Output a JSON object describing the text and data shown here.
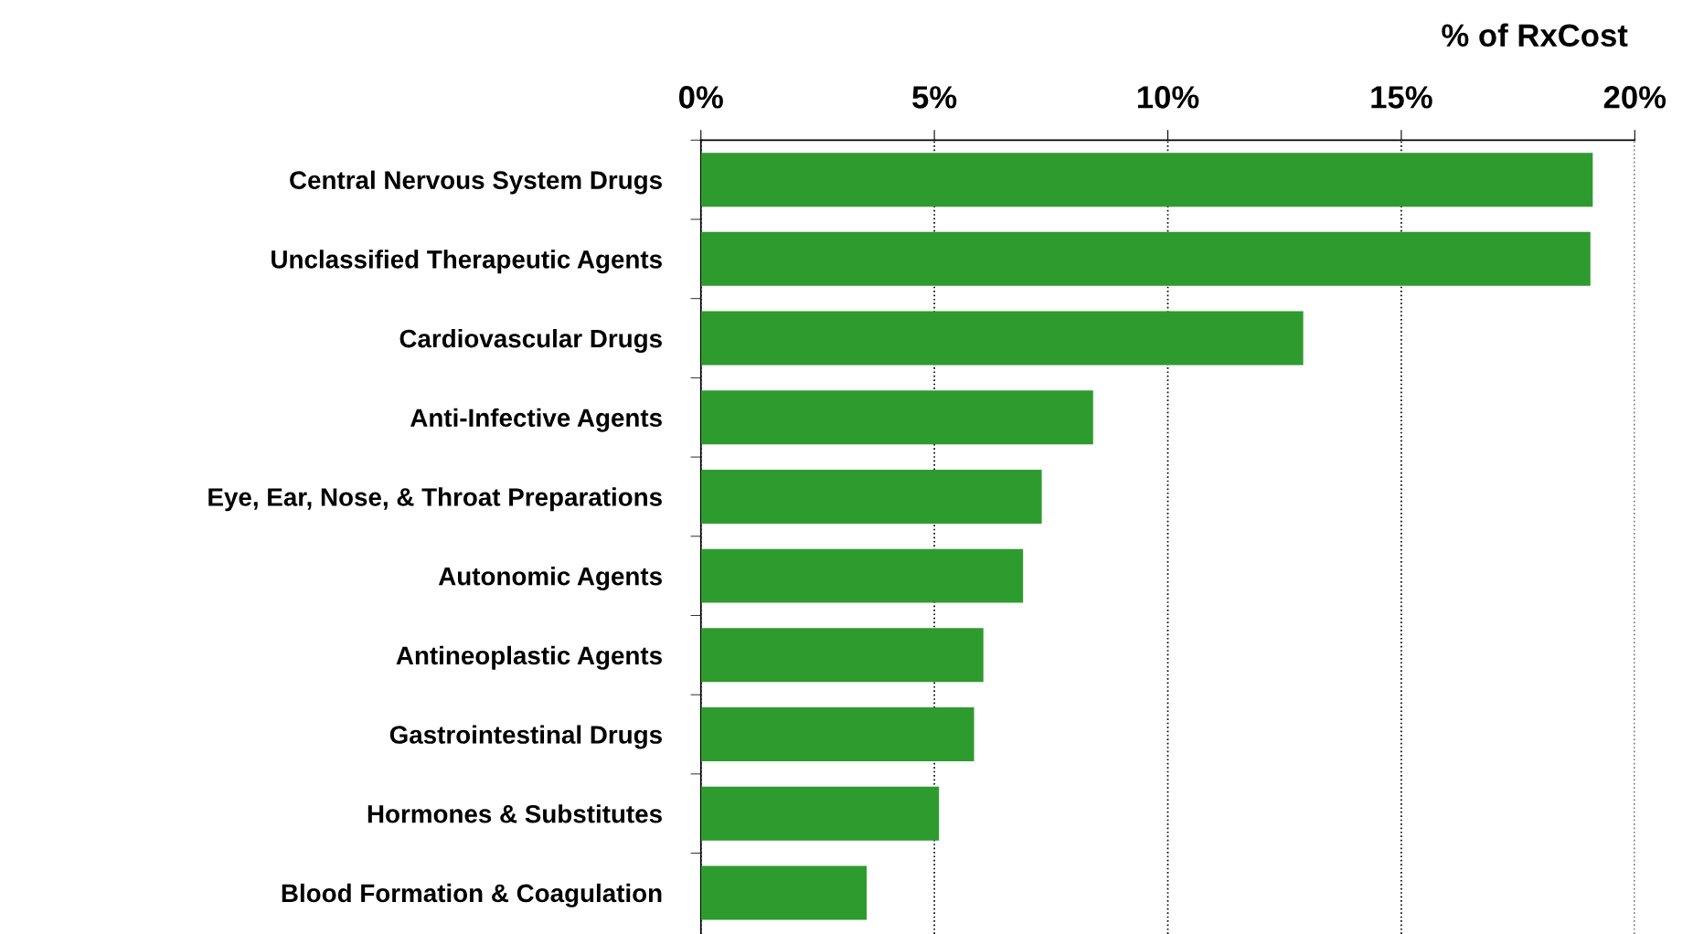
{
  "chart_data": {
    "type": "bar",
    "orientation": "horizontal",
    "xlabel": "% of RxCost",
    "categories": [
      "Central Nervous System Drugs",
      "Unclassified Therapeutic Agents",
      "Cardiovascular Drugs",
      "Anti-Infective Agents",
      "Eye, Ear, Nose, & Throat Preparations",
      "Autonomic Agents",
      "Antineoplastic Agents",
      "Gastrointestinal Drugs",
      "Hormones & Substitutes",
      "Blood Formation & Coagulation"
    ],
    "values": [
      19.1,
      19.05,
      12.9,
      8.4,
      7.3,
      6.9,
      6.05,
      5.85,
      5.1,
      3.55
    ],
    "color": "#2e9b2e",
    "xlim": [
      0,
      20
    ],
    "xticks": [
      {
        "value": 0,
        "label": "0%"
      },
      {
        "value": 5,
        "label": "5%"
      },
      {
        "value": 10,
        "label": "10%"
      },
      {
        "value": 15,
        "label": "15%"
      },
      {
        "value": 20,
        "label": "20%"
      }
    ],
    "grid": "x",
    "legend": false
  }
}
